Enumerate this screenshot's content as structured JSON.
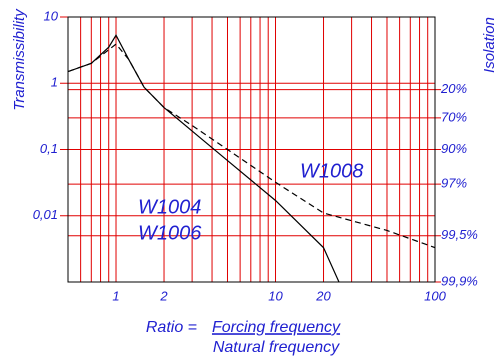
{
  "chart_data": {
    "type": "line",
    "ylabel": "Transmissibility",
    "y2label": "Isolation",
    "xlabel": {
      "prefix": "Ratio =",
      "numerator": "Forcing frequency",
      "denominator": "Natural frequency"
    },
    "xscale": "log",
    "yscale": "log",
    "y2scale": "complement-log",
    "xlim": [
      0.5,
      100
    ],
    "xticks": [
      1,
      2,
      10,
      20,
      100
    ],
    "xminor": [
      0.6,
      0.7,
      0.8,
      0.9,
      3,
      4,
      5,
      6,
      7,
      8,
      9,
      30,
      40,
      50,
      60,
      70,
      80,
      90
    ],
    "ylim": [
      0.001,
      10
    ],
    "yticks": [
      10,
      1,
      {
        "value": 0.1,
        "label": "0,1"
      },
      {
        "value": 0.01,
        "label": "0,01"
      }
    ],
    "y2lim": [
      -900,
      99.9
    ],
    "y2ticks": [
      {
        "value": 20,
        "label": "20%"
      },
      {
        "value": 70,
        "label": "70%"
      },
      {
        "value": 90,
        "label": "90%"
      },
      {
        "value": 97,
        "label": "97%"
      },
      {
        "value": 99.5,
        "label": "99,5%"
      },
      {
        "value": 99.9,
        "label": "99,9%"
      }
    ],
    "grid": true,
    "grid_color": "#e00000",
    "text_color": "#2020d0",
    "series": [
      {
        "labels": [
          "W1004",
          "W1006"
        ],
        "color": "#000000",
        "dash": false,
        "x": [
          0.5,
          0.7,
          0.9,
          1.0,
          1.2,
          1.5,
          2,
          3,
          5,
          10,
          20,
          25
        ],
        "values": [
          1.5,
          2.0,
          3.5,
          5.3,
          2.3,
          0.87,
          0.43,
          0.19,
          0.068,
          0.017,
          0.0033,
          0.001
        ]
      },
      {
        "labels": [
          "W1008"
        ],
        "color": "#000000",
        "dash": true,
        "x": [
          0.5,
          0.7,
          0.9,
          1.0,
          1.2,
          1.5,
          2,
          3,
          5,
          10,
          20,
          50,
          100
        ],
        "values": [
          1.5,
          2.0,
          3.2,
          3.9,
          2.3,
          0.87,
          0.43,
          0.23,
          0.1,
          0.032,
          0.011,
          0.006,
          0.0033
        ]
      }
    ]
  }
}
